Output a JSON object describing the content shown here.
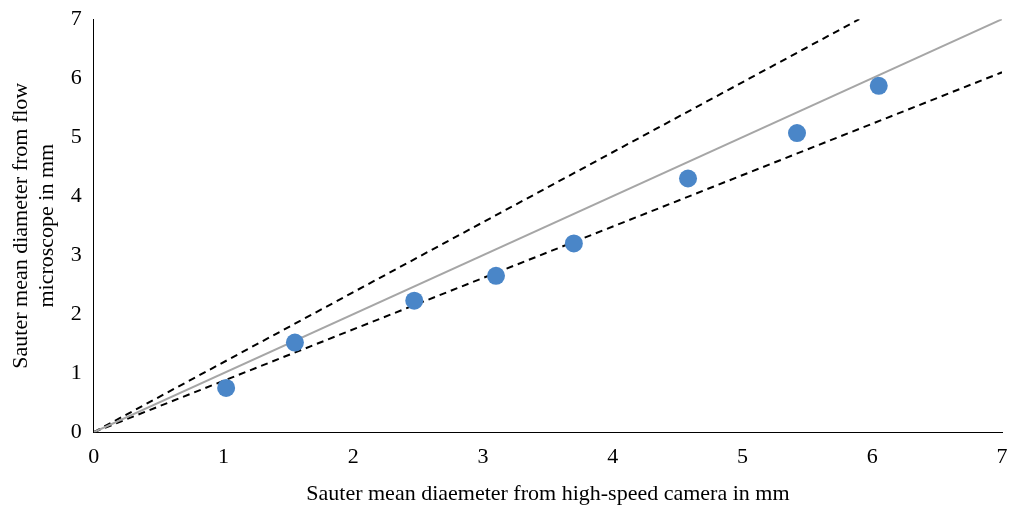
{
  "chart_data": {
    "type": "scatter",
    "x_label": "Sauter mean diaemeter from high-speed camera in mm",
    "y_label": "Sauter mean diameter from flow microscope in mm",
    "xlim": [
      0,
      7
    ],
    "ylim": [
      0,
      7
    ],
    "xticks": [
      0,
      1,
      2,
      3,
      4,
      5,
      6,
      7
    ],
    "yticks": [
      0,
      1,
      2,
      3,
      4,
      5,
      6,
      7
    ],
    "grid": false,
    "series": [
      {
        "type": "line",
        "color": "#a6a6a6",
        "line_style": "solid",
        "x": [
          0,
          7
        ],
        "values": [
          0,
          7
        ]
      },
      {
        "type": "line",
        "color": "#000000",
        "line_style": "dashed",
        "x": [
          0,
          5.9
        ],
        "values": [
          0,
          7
        ]
      },
      {
        "type": "line",
        "color": "#000000",
        "line_style": "dashed",
        "x": [
          0,
          7
        ],
        "values": [
          0,
          6.1
        ]
      },
      {
        "type": "scatter",
        "color": "#4a86c8",
        "marker": "circle",
        "x": [
          1.02,
          1.55,
          2.47,
          3.1,
          3.7,
          4.58,
          5.42,
          6.05
        ],
        "values": [
          0.75,
          1.52,
          2.23,
          2.65,
          3.2,
          4.3,
          5.07,
          5.87
        ]
      }
    ]
  }
}
